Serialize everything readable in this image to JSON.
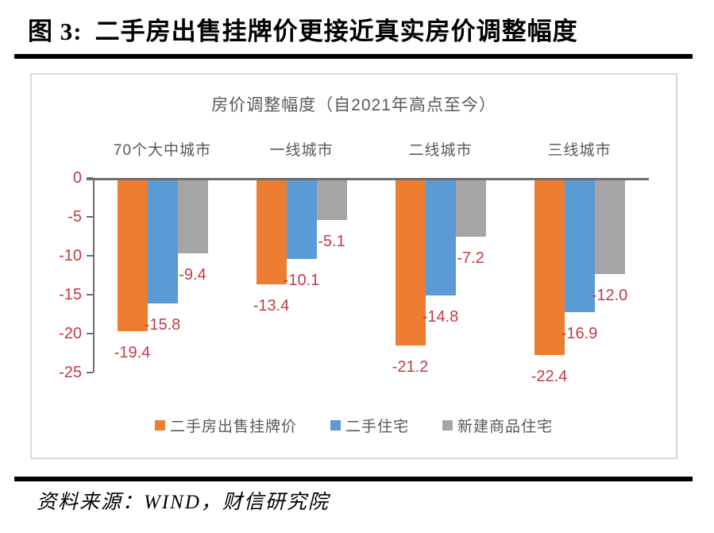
{
  "document": {
    "figure_label": "图 3:",
    "figure_title": "二手房出售挂牌价更接近真实房价调整幅度",
    "source_text": "资料来源：WIND，财信研究院"
  },
  "chart_data": {
    "type": "bar",
    "title": "房价调整幅度（自2021年高点至今）",
    "orientation": "vertical-negative",
    "categories": [
      "70个大中城市",
      "一线城市",
      "二线城市",
      "三线城市"
    ],
    "series": [
      {
        "name": "二手房出售挂牌价",
        "color": "#ED7D31",
        "values": [
          -19.4,
          -13.4,
          -21.2,
          -22.4
        ]
      },
      {
        "name": "二手住宅",
        "color": "#5B9BD5",
        "values": [
          -15.8,
          -10.1,
          -14.8,
          -16.9
        ]
      },
      {
        "name": "新建商品住宅",
        "color": "#A5A5A5",
        "values": [
          -9.4,
          -5.1,
          -7.2,
          -12.0
        ]
      }
    ],
    "y_axis": {
      "min": -25,
      "max": 0,
      "tick_step": 5,
      "ticks": [
        0,
        -5,
        -10,
        -15,
        -20,
        -25
      ]
    },
    "legend_position": "bottom",
    "grid": false,
    "colors": {
      "data_label": "#C23B45",
      "tick_label": "#C23B45",
      "axis_line": "#6E6E6E",
      "text": "#595959",
      "frame_border": "#D9D9D9"
    }
  }
}
